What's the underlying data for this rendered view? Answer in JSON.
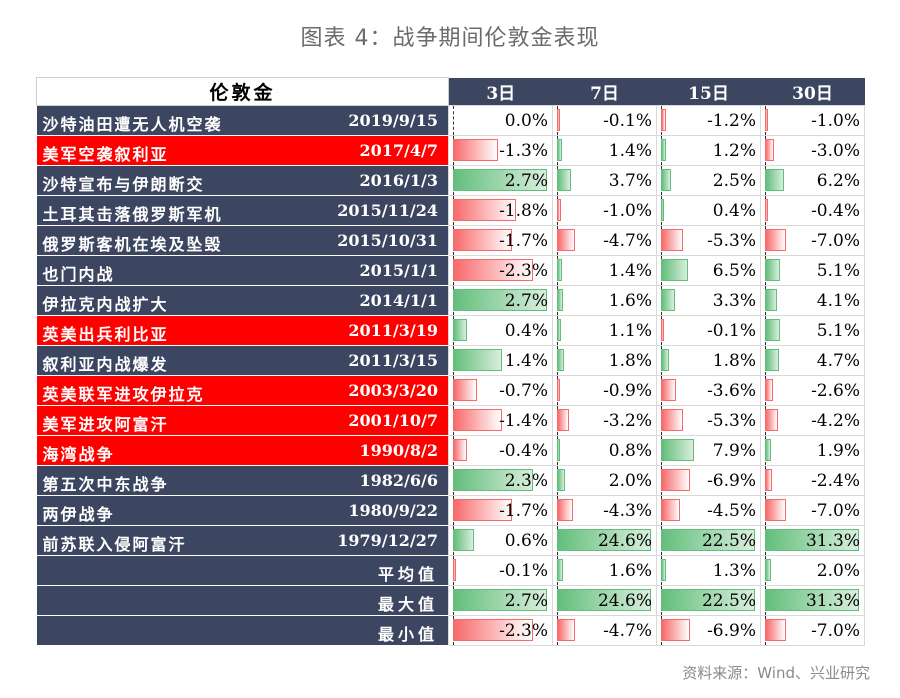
{
  "title": "图表 4：战争期间伦敦金表现",
  "source": "资料来源：Wind、兴业研究",
  "chart_data": {
    "type": "table",
    "row_header": "伦敦金",
    "columns": [
      "3日",
      "7日",
      "15日",
      "30日"
    ],
    "rows": [
      {
        "event": "沙特油田遭无人机空袭",
        "date": "2019/9/15",
        "highlight": false,
        "values": [
          0.0,
          -0.1,
          -1.2,
          -1.0
        ],
        "labels": [
          "0.0%",
          "-0.1%",
          "-1.2%",
          "-1.0%"
        ]
      },
      {
        "event": "美军空袭叙利亚",
        "date": "2017/4/7",
        "highlight": true,
        "values": [
          -1.3,
          1.4,
          1.2,
          -3.0
        ],
        "labels": [
          "-1.3%",
          "1.4%",
          "1.2%",
          "-3.0%"
        ]
      },
      {
        "event": "沙特宣布与伊朗断交",
        "date": "2016/1/3",
        "highlight": false,
        "values": [
          2.7,
          3.7,
          2.5,
          6.2
        ],
        "labels": [
          "2.7%",
          "3.7%",
          "2.5%",
          "6.2%"
        ]
      },
      {
        "event": "土耳其击落俄罗斯军机",
        "date": "2015/11/24",
        "highlight": false,
        "values": [
          -1.8,
          -1.0,
          0.4,
          -0.4
        ],
        "labels": [
          "-1.8%",
          "-1.0%",
          "0.4%",
          "-0.4%"
        ]
      },
      {
        "event": "俄罗斯客机在埃及坠毁",
        "date": "2015/10/31",
        "highlight": false,
        "values": [
          -1.7,
          -4.7,
          -5.3,
          -7.0
        ],
        "labels": [
          "-1.7%",
          "-4.7%",
          "-5.3%",
          "-7.0%"
        ]
      },
      {
        "event": "也门内战",
        "date": "2015/1/1",
        "highlight": false,
        "values": [
          -2.3,
          1.4,
          6.5,
          5.1
        ],
        "labels": [
          "-2.3%",
          "1.4%",
          "6.5%",
          "5.1%"
        ]
      },
      {
        "event": "伊拉克内战扩大",
        "date": "2014/1/1",
        "highlight": false,
        "values": [
          2.7,
          1.6,
          3.3,
          4.1
        ],
        "labels": [
          "2.7%",
          "1.6%",
          "3.3%",
          "4.1%"
        ]
      },
      {
        "event": "英美出兵利比亚",
        "date": "2011/3/19",
        "highlight": true,
        "values": [
          0.4,
          1.1,
          -0.1,
          5.1
        ],
        "labels": [
          "0.4%",
          "1.1%",
          "-0.1%",
          "5.1%"
        ]
      },
      {
        "event": "叙利亚内战爆发",
        "date": "2011/3/15",
        "highlight": false,
        "values": [
          1.4,
          1.8,
          1.8,
          4.7
        ],
        "labels": [
          "1.4%",
          "1.8%",
          "1.8%",
          "4.7%"
        ]
      },
      {
        "event": "英美联军进攻伊拉克",
        "date": "2003/3/20",
        "highlight": true,
        "values": [
          -0.7,
          -0.9,
          -3.6,
          -2.6
        ],
        "labels": [
          "-0.7%",
          "-0.9%",
          "-3.6%",
          "-2.6%"
        ]
      },
      {
        "event": "美军进攻阿富汗",
        "date": "2001/10/7",
        "highlight": true,
        "values": [
          -1.4,
          -3.2,
          -5.3,
          -4.2
        ],
        "labels": [
          "-1.4%",
          "-3.2%",
          "-5.3%",
          "-4.2%"
        ]
      },
      {
        "event": "海湾战争",
        "date": "1990/8/2",
        "highlight": true,
        "values": [
          -0.4,
          0.8,
          7.9,
          1.9
        ],
        "labels": [
          "-0.4%",
          "0.8%",
          "7.9%",
          "1.9%"
        ]
      },
      {
        "event": "第五次中东战争",
        "date": "1982/6/6",
        "highlight": false,
        "values": [
          2.3,
          2.0,
          -6.9,
          -2.4
        ],
        "labels": [
          "2.3%",
          "2.0%",
          "-6.9%",
          "-2.4%"
        ]
      },
      {
        "event": "两伊战争",
        "date": "1980/9/22",
        "highlight": false,
        "values": [
          -1.7,
          -4.3,
          -4.5,
          -7.0
        ],
        "labels": [
          "-1.7%",
          "-4.3%",
          "-4.5%",
          "-7.0%"
        ]
      },
      {
        "event": "前苏联入侵阿富汗",
        "date": "1979/12/27",
        "highlight": false,
        "values": [
          0.6,
          24.6,
          22.5,
          31.3
        ],
        "labels": [
          "0.6%",
          "24.6%",
          "22.5%",
          "31.3%"
        ]
      }
    ],
    "stats": [
      {
        "label": "平均值",
        "values": [
          -0.1,
          1.6,
          1.3,
          2.0
        ],
        "labels": [
          "-0.1%",
          "1.6%",
          "1.3%",
          "2.0%"
        ]
      },
      {
        "label": "最大值",
        "values": [
          2.7,
          24.6,
          22.5,
          31.3
        ],
        "labels": [
          "2.7%",
          "24.6%",
          "22.5%",
          "31.3%"
        ]
      },
      {
        "label": "最小值",
        "values": [
          -2.3,
          -4.7,
          -6.9,
          -7.0
        ],
        "labels": [
          "-2.3%",
          "-4.7%",
          "-6.9%",
          "-7.0%"
        ]
      }
    ],
    "colors": {
      "positive": "#63be7b",
      "negative": "#f8696b",
      "header": "#3c4660",
      "highlight": "#ff0000"
    }
  }
}
